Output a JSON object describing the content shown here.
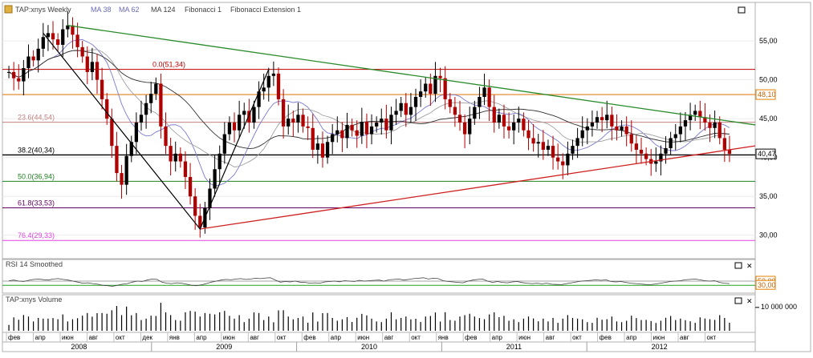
{
  "toolbar": {
    "symbol_label": "TAP:xnys Weekly",
    "ma1_label": "MA 38",
    "ma2_label": "MA 62",
    "ma3_label": "MA 124",
    "fib_label": "Fibonacci 1",
    "fibext_label": "Fibonacci Extension 1"
  },
  "colors": {
    "candle": "#000000",
    "down_candle": "#b00000",
    "ma1": "#7a7ad0",
    "ma2": "#a0a0a0",
    "ma3": "#303030",
    "trend_down": "#2a8a2a",
    "trend_up": "#d02020",
    "rsi": "#404040",
    "volume": "#000000",
    "price_badge": "#ffffff",
    "level_badge": "#e08000"
  },
  "chart_data": [
    {
      "type": "candlestick",
      "title": "TAP:xnys Weekly",
      "x_months": [
        "фев",
        "апр",
        "июн",
        "авг",
        "окт",
        "дек",
        "янв",
        "апр",
        "июн",
        "авг",
        "окт",
        "фев",
        "апр",
        "июн",
        "авг",
        "окт",
        "янв",
        "фев",
        "апр",
        "июн",
        "авг",
        "окт",
        "фев",
        "апр",
        "июн",
        "авг",
        "окт"
      ],
      "years": [
        "2008",
        "2009",
        "2010",
        "2011",
        "2012"
      ],
      "ylim": [
        27.5,
        58.0
      ],
      "y_ticks": [
        "30,00",
        "35,00",
        "40,00",
        "45,00",
        "50,00",
        "55,00"
      ],
      "y_tick_values": [
        30,
        35,
        40,
        45,
        50,
        55
      ],
      "last_price": "40,47",
      "last_price_value": 40.47,
      "marked_level": "48,10",
      "marked_level_value": 48.1,
      "fibonacci_levels": [
        {
          "label": "0.0(51,34)",
          "value": 51.34,
          "color": "#c00000"
        },
        {
          "label": "23.6(44,54)",
          "value": 44.54,
          "color": "#c08080"
        },
        {
          "label": "38.2(40,34)",
          "value": 40.34,
          "color": "#000000"
        },
        {
          "label": "50.0(36,94)",
          "value": 36.94,
          "color": "#208020"
        },
        {
          "label": "61.8(33,53)",
          "value": 33.53,
          "color": "#600060"
        },
        {
          "label": "76.4(29,33)",
          "value": 29.33,
          "color": "#e040e0"
        }
      ],
      "closes": [
        51.0,
        50.2,
        49.8,
        51.5,
        53.0,
        52.5,
        54.0,
        55.5,
        56.0,
        55.2,
        54.5,
        56.5,
        57.0,
        55.8,
        54.2,
        53.0,
        51.0,
        52.3,
        50.0,
        47.5,
        45.0,
        41.5,
        38.0,
        36.5,
        40.2,
        42.0,
        44.5,
        45.5,
        47.0,
        48.2,
        49.5,
        44.0,
        41.5,
        39.5,
        40.5,
        39.5,
        37.5,
        35.0,
        32.5,
        31.0,
        33.5,
        36.0,
        38.5,
        40.5,
        43.0,
        44.5,
        43.5,
        45.5,
        46.0,
        44.5,
        46.5,
        48.5,
        49.0,
        50.5,
        50.8,
        47.5,
        44.0,
        45.0,
        44.5,
        45.5,
        44.0,
        43.8,
        41.0,
        41.8,
        40.0,
        42.0,
        43.0,
        43.5,
        42.5,
        44.2,
        43.5,
        42.8,
        44.6,
        43.0,
        44.0,
        44.5,
        45.0,
        43.5,
        45.5,
        46.0,
        47.0,
        45.5,
        46.5,
        47.8,
        48.5,
        49.5,
        48.2,
        50.5,
        50.2,
        47.5,
        46.5,
        45.5,
        44.5,
        43.0,
        45.0,
        46.5,
        47.8,
        49.0,
        46.5,
        44.5,
        45.5,
        44.0,
        43.5,
        44.5,
        45.0,
        43.5,
        42.5,
        41.8,
        42.0,
        41.0,
        41.5,
        40.0,
        39.5,
        39.0,
        40.5,
        41.5,
        42.5,
        43.5,
        44.0,
        44.5,
        45.2,
        44.8,
        45.5,
        44.0,
        43.5,
        44.0,
        43.0,
        41.8,
        41.0,
        40.5,
        39.8,
        39.2,
        39.5,
        40.5,
        41.2,
        42.5,
        43.0,
        44.0,
        44.8,
        45.5,
        46.0,
        45.2,
        44.5,
        43.8,
        44.5,
        42.5,
        41.0,
        40.47
      ],
      "annotations": [
        "Fibonacci 1",
        "Fibonacci Extension 1"
      ]
    },
    {
      "type": "line",
      "title": "RSI 14 Smoothed",
      "ylim": [
        0,
        100
      ],
      "levels": [
        "50,00",
        "30,00"
      ],
      "level_values": [
        50,
        30
      ],
      "values": [
        52,
        55,
        50,
        48,
        54,
        58,
        60,
        57,
        55,
        60,
        62,
        58,
        55,
        50,
        45,
        40,
        42,
        38,
        35,
        30,
        28,
        25,
        30,
        35,
        38,
        45,
        50,
        48,
        55,
        60,
        58,
        45,
        40,
        38,
        42,
        40,
        35,
        30,
        28,
        32,
        38,
        45,
        50,
        55,
        58,
        56,
        60,
        62,
        58,
        60,
        64,
        62,
        65,
        66,
        55,
        45,
        48,
        46,
        50,
        45,
        44,
        40,
        42,
        40,
        46,
        48,
        50,
        47,
        52,
        50,
        48,
        54,
        50,
        52,
        54,
        55,
        50,
        56,
        58,
        60,
        55,
        58,
        62,
        64,
        66,
        60,
        64,
        62,
        52,
        48,
        46,
        44,
        42,
        50,
        55,
        58,
        60,
        50,
        44,
        48,
        44,
        42,
        46,
        48,
        43,
        40,
        38,
        40,
        37,
        40,
        35,
        34,
        33,
        38,
        42,
        46,
        50,
        52,
        54,
        56,
        54,
        56,
        48,
        46,
        48,
        44,
        40,
        38,
        36,
        34,
        33,
        36,
        40,
        44,
        48,
        50,
        52,
        56,
        58,
        60,
        56,
        52,
        50,
        52,
        44,
        40,
        38
      ]
    },
    {
      "type": "bar",
      "title": "TAP:xnys Volume",
      "y_tick": "10 000 000",
      "y_tick_value": 10000000,
      "ylim": [
        0,
        12000000
      ]
    }
  ]
}
